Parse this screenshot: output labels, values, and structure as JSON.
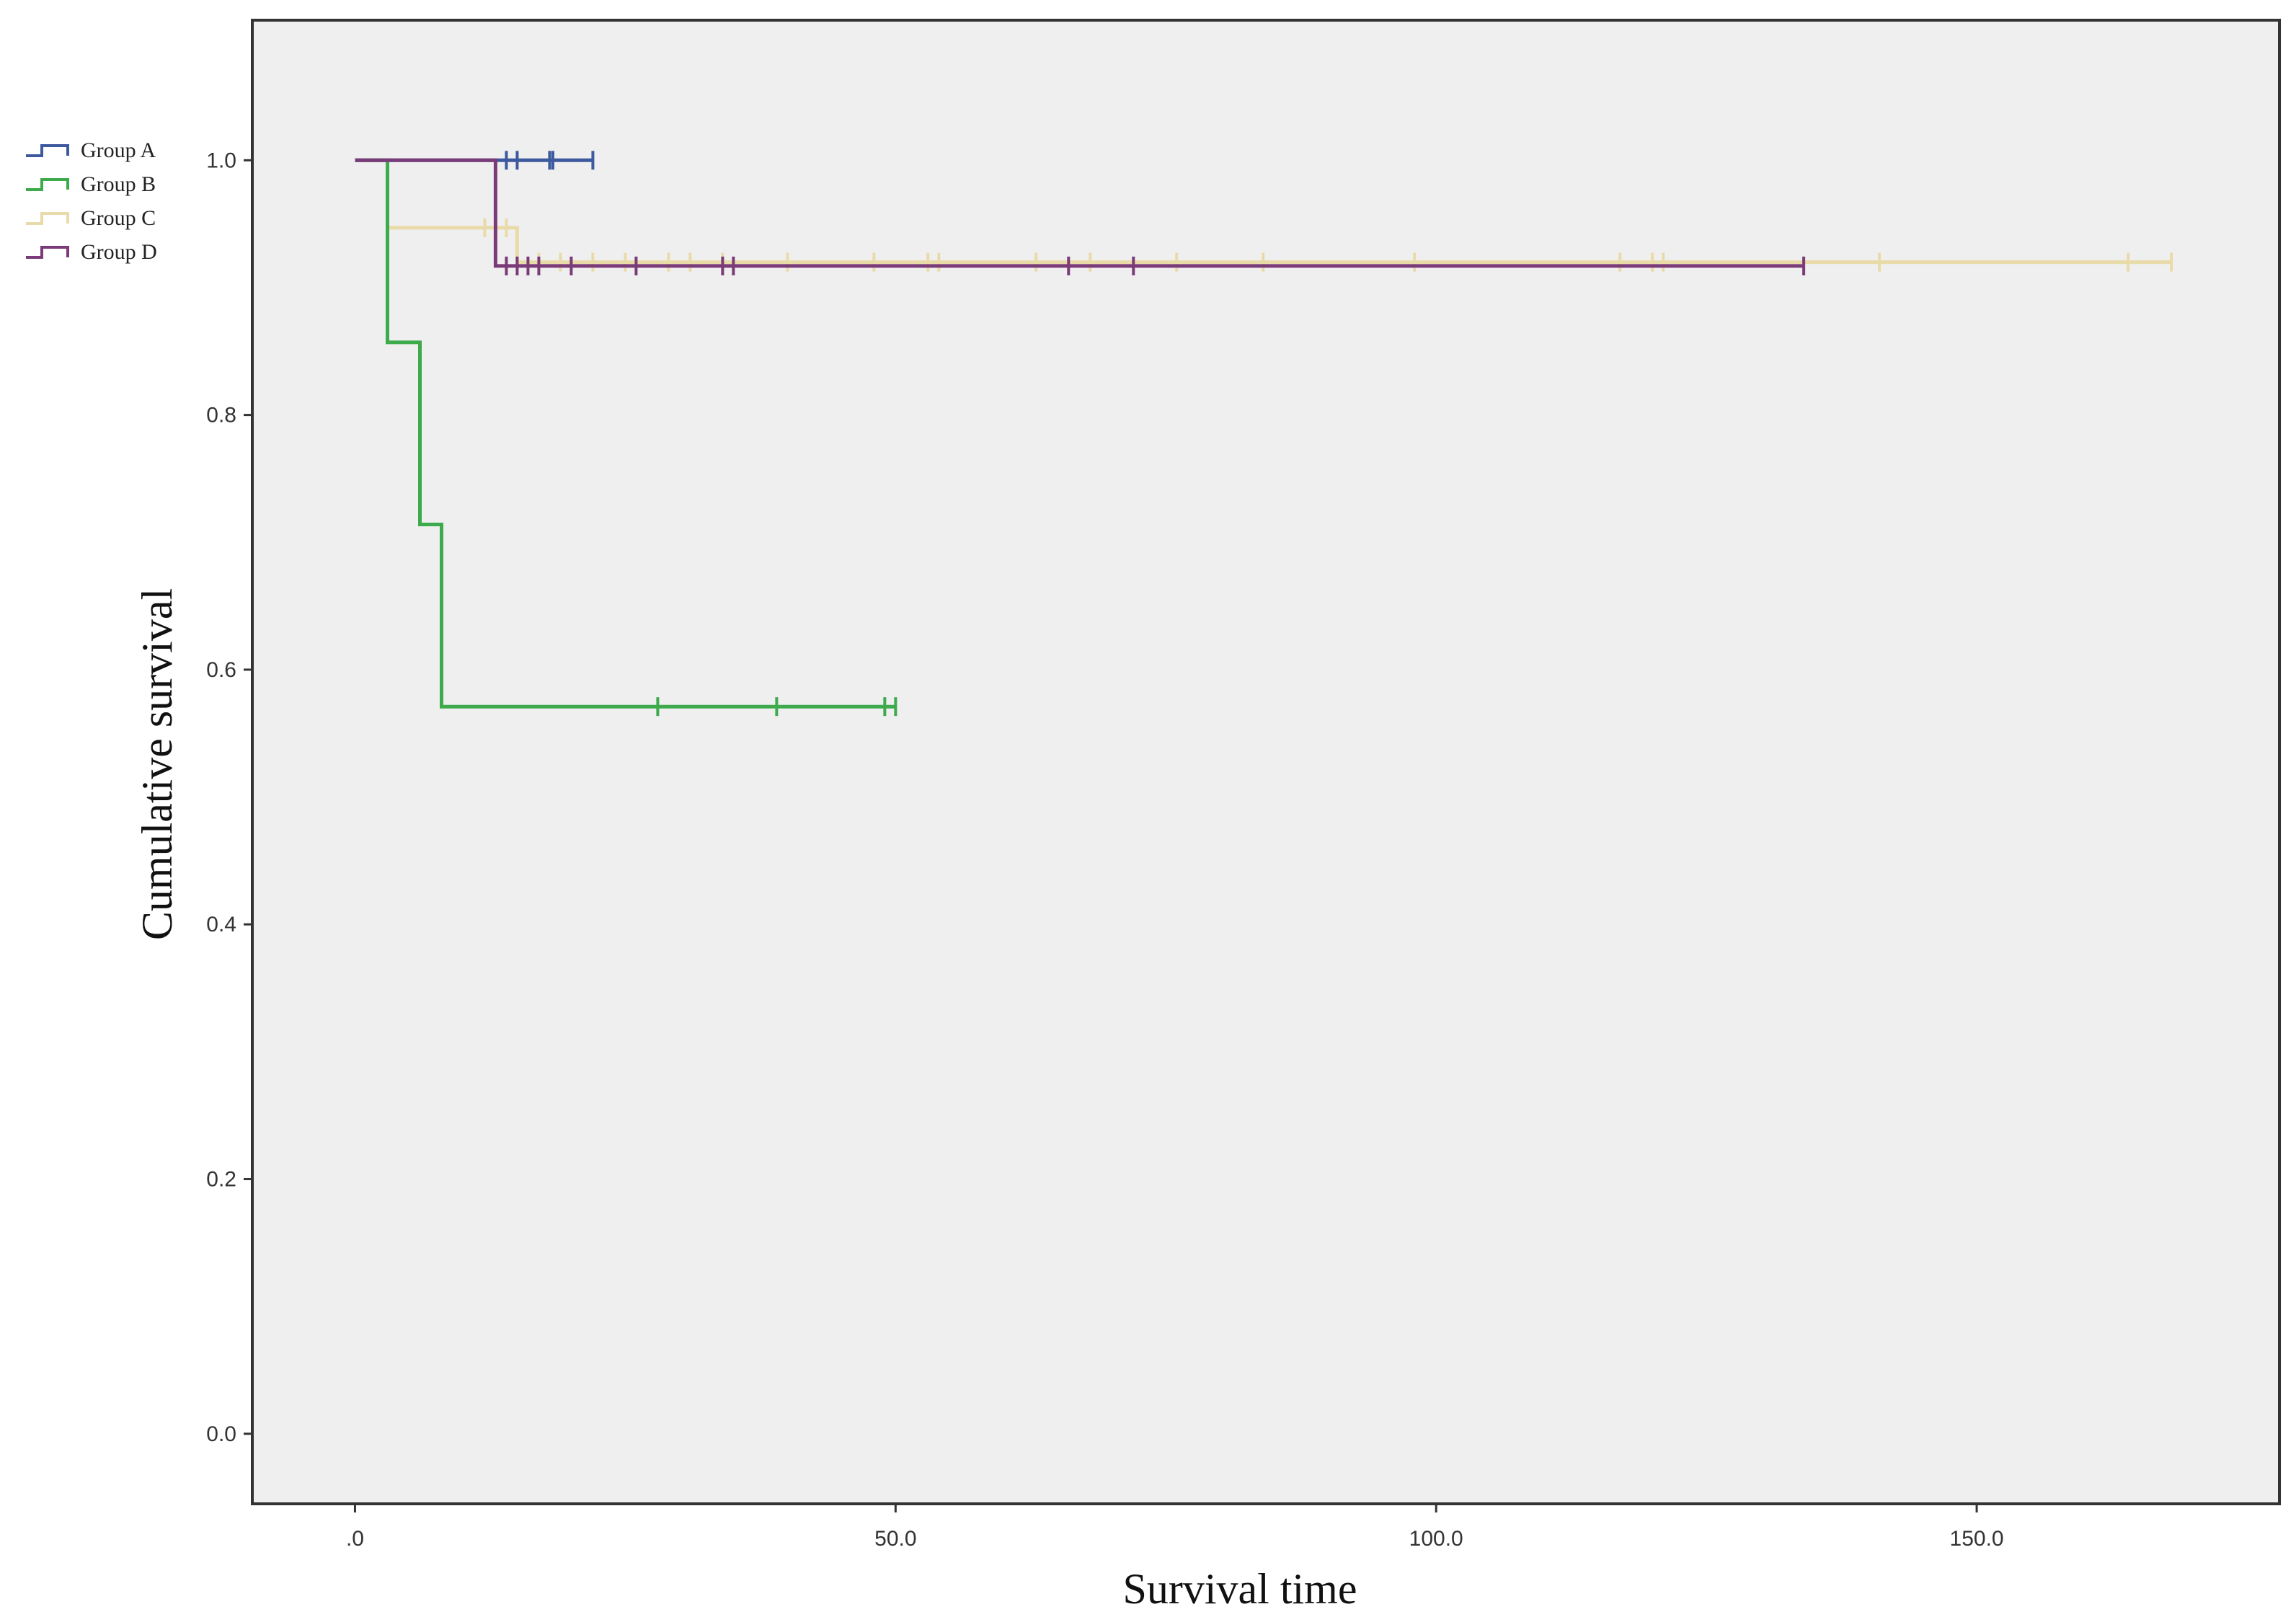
{
  "chart_data": {
    "type": "line",
    "subtype": "kaplan-meier-step",
    "title": "",
    "xlabel": "Survival time",
    "ylabel": "Cumulative survival",
    "xlim": [
      -9.5,
      178
    ],
    "ylim": [
      -0.055,
      1.11
    ],
    "xticks": [
      0,
      50,
      100,
      150
    ],
    "xtick_labels": [
      ".0",
      "50.0",
      "100.0",
      "150.0"
    ],
    "yticks": [
      0,
      0.2,
      0.4,
      0.6,
      0.8,
      1.0
    ],
    "ytick_labels": [
      "0.0",
      "0.2",
      "0.4",
      "0.6",
      "0.8",
      "1.0"
    ],
    "grid": false,
    "plot_background": "#efefef",
    "legend_position": "top-left, outside plot",
    "series": [
      {
        "name": "Group A",
        "color": "#3d5a9e",
        "steps": [
          [
            0,
            1.0
          ],
          [
            22,
            1.0
          ]
        ],
        "censored": [
          [
            14,
            1.0
          ],
          [
            15,
            1.0
          ],
          [
            18,
            1.0
          ],
          [
            18.3,
            1.0
          ],
          [
            22,
            1.0
          ]
        ]
      },
      {
        "name": "Group B",
        "color": "#3daa4c",
        "steps": [
          [
            0,
            1.0
          ],
          [
            3,
            1.0
          ],
          [
            3,
            0.857
          ],
          [
            6,
            0.857
          ],
          [
            6,
            0.714
          ],
          [
            8,
            0.714
          ],
          [
            8,
            0.571
          ],
          [
            50,
            0.571
          ]
        ],
        "censored": [
          [
            28,
            0.571
          ],
          [
            39,
            0.571
          ],
          [
            49,
            0.571
          ],
          [
            50,
            0.571
          ]
        ]
      },
      {
        "name": "Group C",
        "color": "#e9dba9",
        "steps": [
          [
            0,
            1.0
          ],
          [
            3,
            1.0
          ],
          [
            3,
            0.947
          ],
          [
            15,
            0.947
          ],
          [
            15,
            0.92
          ],
          [
            168,
            0.92
          ]
        ],
        "censored": [
          [
            12,
            0.947
          ],
          [
            14,
            0.947
          ],
          [
            17,
            0.92
          ],
          [
            19,
            0.92
          ],
          [
            22,
            0.92
          ],
          [
            25,
            0.92
          ],
          [
            29,
            0.92
          ],
          [
            31,
            0.92
          ],
          [
            34,
            0.92
          ],
          [
            40,
            0.92
          ],
          [
            48,
            0.92
          ],
          [
            53,
            0.92
          ],
          [
            54,
            0.92
          ],
          [
            63,
            0.92
          ],
          [
            68,
            0.92
          ],
          [
            76,
            0.92
          ],
          [
            84,
            0.92
          ],
          [
            98,
            0.92
          ],
          [
            117,
            0.92
          ],
          [
            120,
            0.92
          ],
          [
            121,
            0.92
          ],
          [
            141,
            0.92
          ],
          [
            164,
            0.92
          ],
          [
            168,
            0.92
          ]
        ]
      },
      {
        "name": "Group D",
        "color": "#7b3a78",
        "steps": [
          [
            0,
            1.0
          ],
          [
            13,
            1.0
          ],
          [
            13,
            0.917
          ],
          [
            134,
            0.917
          ]
        ],
        "censored": [
          [
            14,
            0.917
          ],
          [
            15,
            0.917
          ],
          [
            16,
            0.917
          ],
          [
            17,
            0.917
          ],
          [
            20,
            0.917
          ],
          [
            26,
            0.917
          ],
          [
            34,
            0.917
          ],
          [
            35,
            0.917
          ],
          [
            66,
            0.917
          ],
          [
            72,
            0.917
          ],
          [
            134,
            0.917
          ]
        ]
      }
    ]
  }
}
